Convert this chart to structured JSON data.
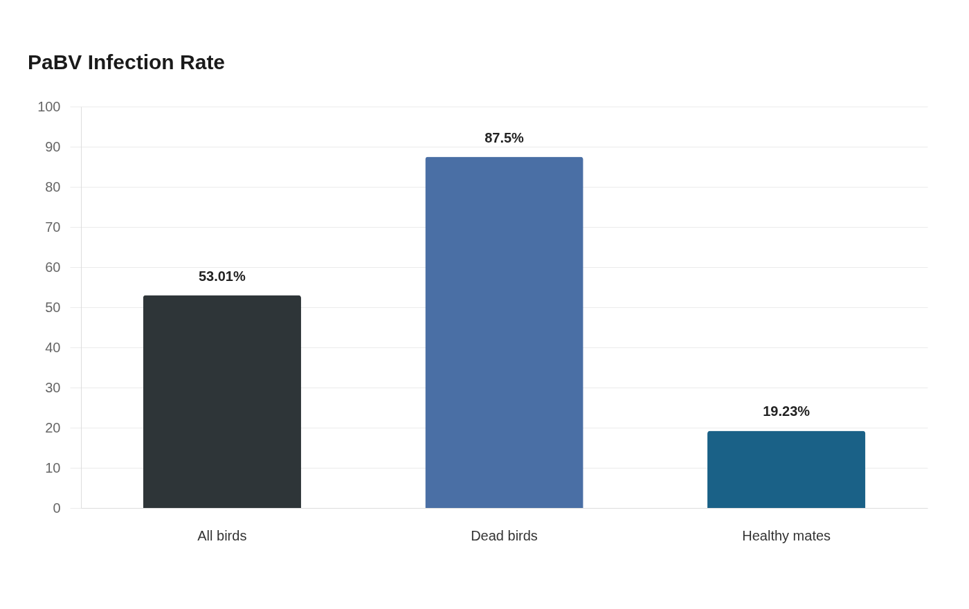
{
  "chart_data": {
    "type": "bar",
    "title": "PaBV Infection Rate",
    "categories": [
      "All birds",
      "Dead birds",
      "Healthy mates"
    ],
    "values": [
      53.01,
      87.5,
      19.23
    ],
    "colors": [
      "#2e3538",
      "#4a6fa5",
      "#1a6187"
    ],
    "value_labels": [
      "53.01%",
      "87.5%",
      "19.23%"
    ],
    "ylim": [
      0,
      100
    ],
    "yticks": [
      0,
      10,
      20,
      30,
      40,
      50,
      60,
      70,
      80,
      90,
      100
    ],
    "grid": "y"
  }
}
